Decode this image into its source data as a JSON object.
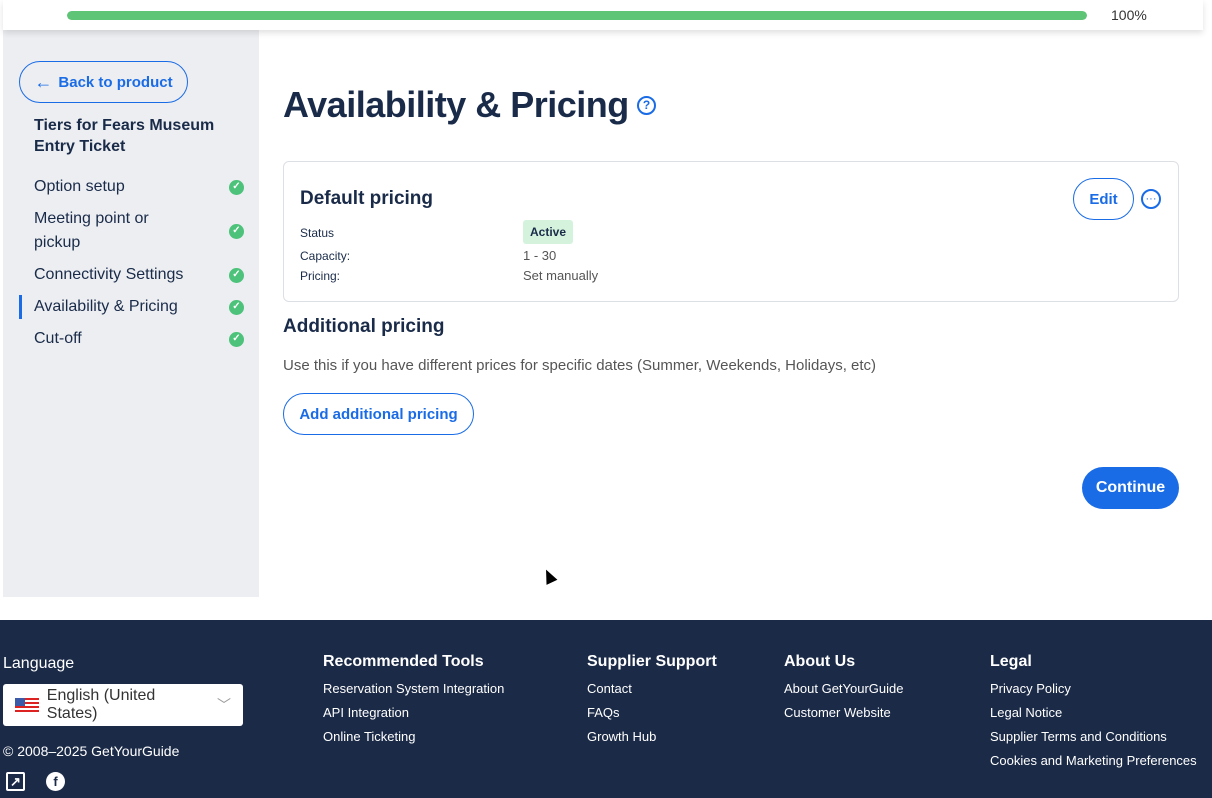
{
  "progress": {
    "percent": 100,
    "label": "100%",
    "color": "#5ec476"
  },
  "sidebar": {
    "back_label": "Back to product",
    "product_name": "Tiers for Fears Museum Entry Ticket",
    "items": [
      {
        "label": "Option setup",
        "complete": true
      },
      {
        "label": "Meeting point or pickup",
        "complete": true
      },
      {
        "label": "Connectivity Settings",
        "complete": true
      },
      {
        "label": "Availability & Pricing",
        "complete": true,
        "active": true
      },
      {
        "label": "Cut-off",
        "complete": true
      }
    ]
  },
  "main": {
    "title": "Availability & Pricing",
    "default_pricing": {
      "title": "Default pricing",
      "edit_label": "Edit",
      "status_label": "Status",
      "status_value": "Active",
      "capacity_label": "Capacity:",
      "capacity_value": "1 - 30",
      "pricing_label": "Pricing:",
      "pricing_value": "Set manually"
    },
    "additional": {
      "title": "Additional pricing",
      "description": "Use this if you have different prices for specific dates (Summer, Weekends, Holidays, etc)",
      "button_label": "Add additional pricing"
    },
    "continue_label": "Continue",
    "accent": "#1a6ce6"
  },
  "footer": {
    "language_title": "Language",
    "language_value": "English (United States)",
    "copyright": "© 2008–2025 GetYourGuide",
    "columns": [
      {
        "title": "Recommended Tools",
        "links": [
          "Reservation System Integration",
          "API Integration",
          "Online Ticketing"
        ]
      },
      {
        "title": "Supplier Support",
        "links": [
          "Contact",
          "FAQs",
          "Growth Hub"
        ]
      },
      {
        "title": "About Us",
        "links": [
          "About GetYourGuide",
          "Customer Website"
        ]
      },
      {
        "title": "Legal",
        "links": [
          "Privacy Policy",
          "Legal Notice",
          "Supplier Terms and Conditions",
          "Cookies and Marketing Preferences"
        ]
      }
    ],
    "background": "#1b2a47"
  }
}
